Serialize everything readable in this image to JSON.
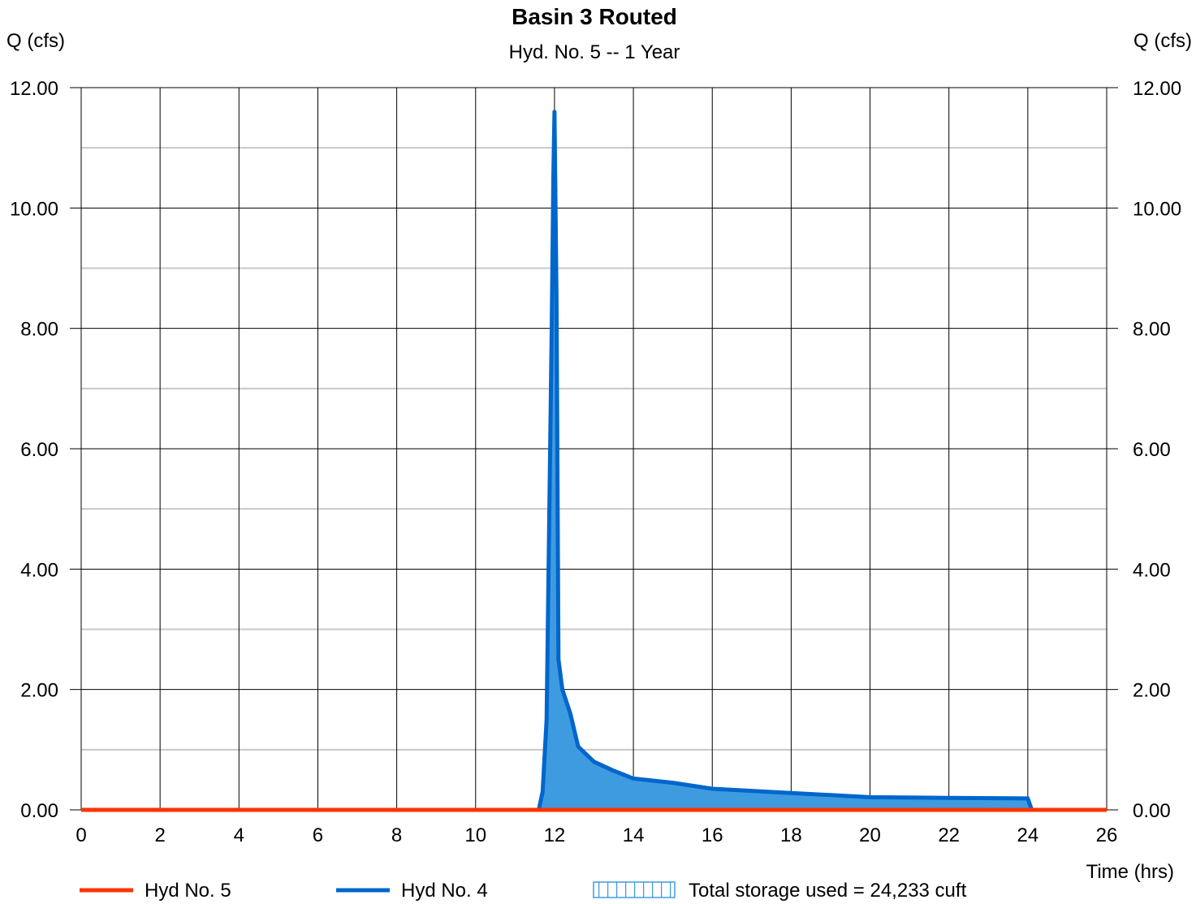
{
  "chart_data": {
    "type": "area",
    "title": "Basin 3 Routed",
    "subtitle": "Hyd. No. 5 -- 1 Year",
    "ylabel_left": "Q (cfs)",
    "ylabel_right": "Q (cfs)",
    "xlabel": "Time (hrs)",
    "xlim": [
      0,
      26
    ],
    "ylim": [
      0,
      12
    ],
    "x_ticks": [
      "0",
      "2",
      "4",
      "6",
      "8",
      "10",
      "12",
      "14",
      "16",
      "18",
      "20",
      "22",
      "24",
      "26"
    ],
    "y_ticks": [
      "0.00",
      "2.00",
      "4.00",
      "6.00",
      "8.00",
      "10.00",
      "12.00"
    ],
    "x_tick_values": [
      0,
      2,
      4,
      6,
      8,
      10,
      12,
      14,
      16,
      18,
      20,
      22,
      24,
      26
    ],
    "y_tick_values": [
      0,
      2,
      4,
      6,
      8,
      10,
      12
    ],
    "y_minor_gridlines": [
      1,
      3,
      5,
      7,
      9,
      11
    ],
    "grid": true,
    "series": [
      {
        "name": "Hyd No. 5",
        "color": "#ff3300",
        "style": "line",
        "x": [
          0,
          26
        ],
        "y": [
          0.0,
          0.0
        ]
      },
      {
        "name": "Hyd No. 4",
        "color": "#0066cc",
        "fill_color": "#3f9be0",
        "style": "filled-area",
        "x": [
          11.6,
          11.7,
          11.8,
          11.87,
          11.93,
          11.97,
          12.0,
          12.05,
          12.1,
          12.2,
          12.4,
          12.6,
          13.0,
          13.5,
          14.0,
          15.0,
          16.0,
          18.0,
          20.0,
          22.0,
          24.0,
          24.1
        ],
        "y": [
          0.0,
          0.3,
          1.5,
          5.0,
          8.0,
          10.5,
          11.6,
          8.5,
          2.5,
          2.0,
          1.6,
          1.05,
          0.8,
          0.65,
          0.52,
          0.45,
          0.35,
          0.28,
          0.21,
          0.2,
          0.19,
          0.0
        ]
      }
    ],
    "legend": {
      "placement": "bottom",
      "items": [
        {
          "label": "Hyd No. 5",
          "kind": "line",
          "color": "#ff3300"
        },
        {
          "label": "Hyd No. 4",
          "kind": "line",
          "color": "#0066cc"
        },
        {
          "label": "Total storage used = 24,233 cuft",
          "kind": "hatched-box",
          "color": "#3f9be0"
        }
      ]
    }
  }
}
